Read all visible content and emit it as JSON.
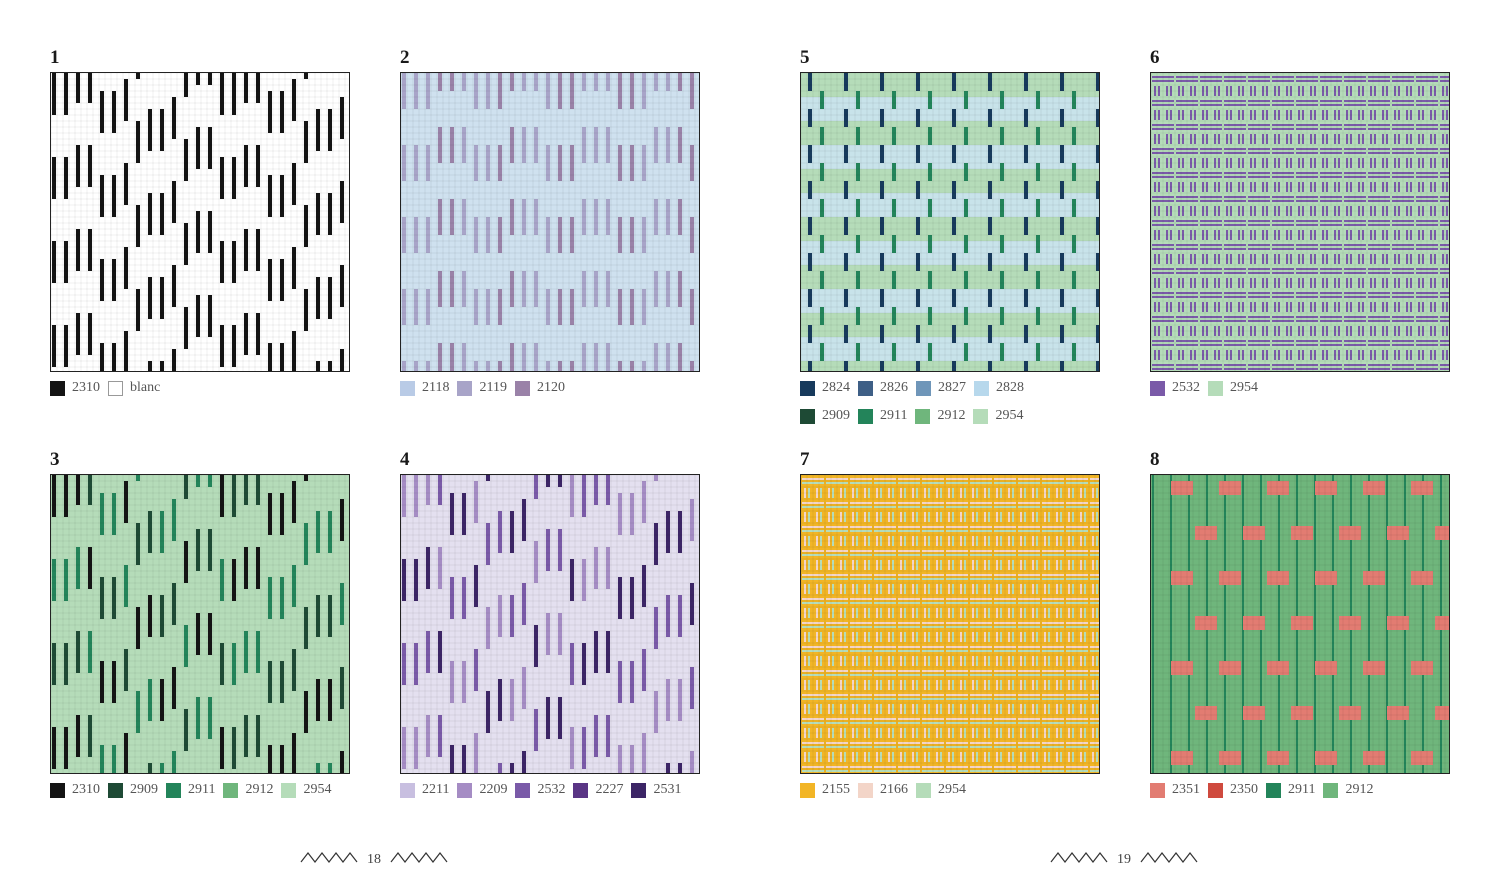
{
  "pages": [
    {
      "page_number": "18",
      "patterns": [
        {
          "number": "1",
          "legend": [
            {
              "code": "2310",
              "color": "#141414"
            },
            {
              "code": "blanc",
              "color": "#ffffff"
            }
          ],
          "motif": "stepped-diagonal-bands",
          "bg": "#ffffff",
          "band_colors": [
            "#141414"
          ]
        },
        {
          "number": "2",
          "legend": [
            {
              "code": "2118",
              "color": "#b9cbe6"
            },
            {
              "code": "2119",
              "color": "#a8a4c8"
            },
            {
              "code": "2120",
              "color": "#9a82a8"
            }
          ],
          "motif": "horizontal-bands",
          "bg": "#cfe1ef",
          "band_colors": [
            "#a8a4c8",
            "#9a82a8"
          ]
        },
        {
          "number": "3",
          "legend": [
            {
              "code": "2310",
              "color": "#141414"
            },
            {
              "code": "2909",
              "color": "#1e4a35"
            },
            {
              "code": "2911",
              "color": "#23845a"
            },
            {
              "code": "2912",
              "color": "#6fb67c"
            },
            {
              "code": "2954",
              "color": "#b5dcb9"
            }
          ],
          "motif": "stepped-diagonal-bands",
          "bg": "#b5dcb9",
          "band_colors": [
            "#141414",
            "#1e4a35",
            "#23845a"
          ]
        },
        {
          "number": "4",
          "legend": [
            {
              "code": "2211",
              "color": "#c8bfe0"
            },
            {
              "code": "2209",
              "color": "#a58cc4"
            },
            {
              "code": "2532",
              "color": "#7a5aa8"
            },
            {
              "code": "2227",
              "color": "#5a3585"
            },
            {
              "code": "2531",
              "color": "#3c2566"
            }
          ],
          "motif": "stepped-diagonal-bands",
          "bg": "#e4e0f0",
          "band_colors": [
            "#a58cc4",
            "#7a5aa8",
            "#3c2566"
          ]
        }
      ]
    },
    {
      "page_number": "19",
      "patterns": [
        {
          "number": "5",
          "legend": [
            {
              "code": "2824",
              "color": "#173a5c"
            },
            {
              "code": "2826",
              "color": "#3e5f86"
            },
            {
              "code": "2827",
              "color": "#6f96b9"
            },
            {
              "code": "2828",
              "color": "#b7d8ec"
            },
            {
              "code": "2909",
              "color": "#1e4a35"
            },
            {
              "code": "2911",
              "color": "#23845a"
            },
            {
              "code": "2912",
              "color": "#6fb67c"
            },
            {
              "code": "2954",
              "color": "#b5dcb9"
            }
          ],
          "motif": "plaid",
          "bg": "#c8e3ea",
          "band_colors": [
            "#173a5c",
            "#23845a",
            "#b5dcb9"
          ]
        },
        {
          "number": "6",
          "legend": [
            {
              "code": "2532",
              "color": "#7a5aa8"
            },
            {
              "code": "2954",
              "color": "#b5dcb9"
            }
          ],
          "motif": "basketweave",
          "bg": "#b5dcb9",
          "band_colors": [
            "#7a5aa8"
          ]
        },
        {
          "number": "7",
          "legend": [
            {
              "code": "2155",
              "color": "#f2b526"
            },
            {
              "code": "2166",
              "color": "#f3d5c8"
            },
            {
              "code": "2954",
              "color": "#b5dcb9"
            }
          ],
          "motif": "basketweave",
          "bg": "#f2b526",
          "band_colors": [
            "#f3d5c8",
            "#b5dcb9"
          ]
        },
        {
          "number": "8",
          "legend": [
            {
              "code": "2351",
              "color": "#e27c72"
            },
            {
              "code": "2350",
              "color": "#cf4a3e"
            },
            {
              "code": "2911",
              "color": "#23845a"
            },
            {
              "code": "2912",
              "color": "#6fb67c"
            }
          ],
          "motif": "blocks",
          "bg": "#6fb67c",
          "band_colors": [
            "#23845a",
            "#e27c72"
          ]
        }
      ]
    }
  ]
}
